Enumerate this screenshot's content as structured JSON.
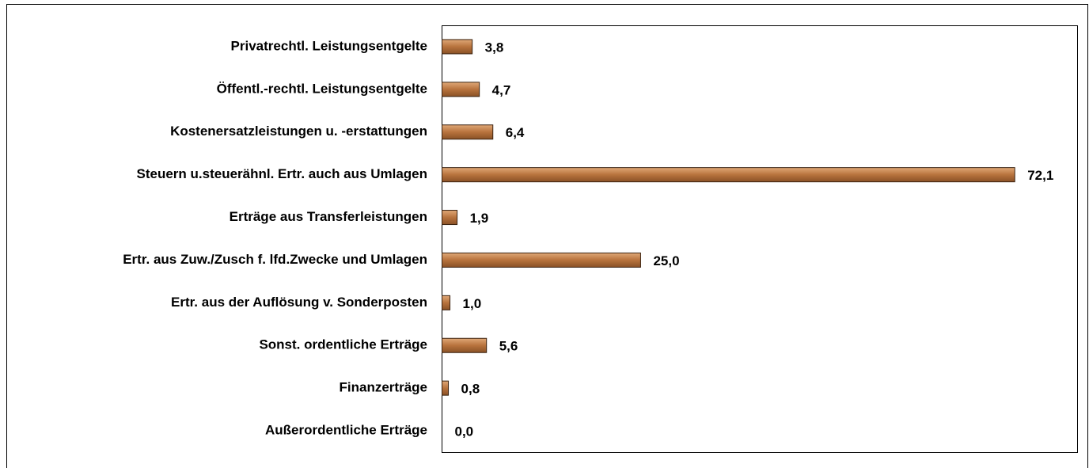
{
  "chart_data": {
    "type": "bar",
    "orientation": "horizontal",
    "categories": [
      "Privatrechtl. Leistungsentgelte",
      "Öffentl.-rechtl. Leistungsentgelte",
      "Kostenersatzleistungen u. -erstattungen",
      "Steuern u.steuerähnl. Ertr. auch aus Umlagen",
      "Erträge aus Transferleistungen",
      "Ertr. aus Zuw./Zusch f. lfd.Zwecke und Umlagen",
      "Ertr. aus der Auflösung v. Sonderposten",
      "Sonst. ordentliche Erträge",
      "Finanzerträge",
      "Außerordentliche Erträge"
    ],
    "values": [
      3.8,
      4.7,
      6.4,
      72.1,
      1.9,
      25.0,
      1.0,
      5.6,
      0.8,
      0.0
    ],
    "value_labels": [
      "3,8",
      "4,7",
      "6,4",
      "72,1",
      "1,9",
      "25,0",
      "1,0",
      "5,6",
      "0,8",
      "0,0"
    ],
    "color": "#b8733d",
    "xlim": [
      0,
      80
    ]
  }
}
